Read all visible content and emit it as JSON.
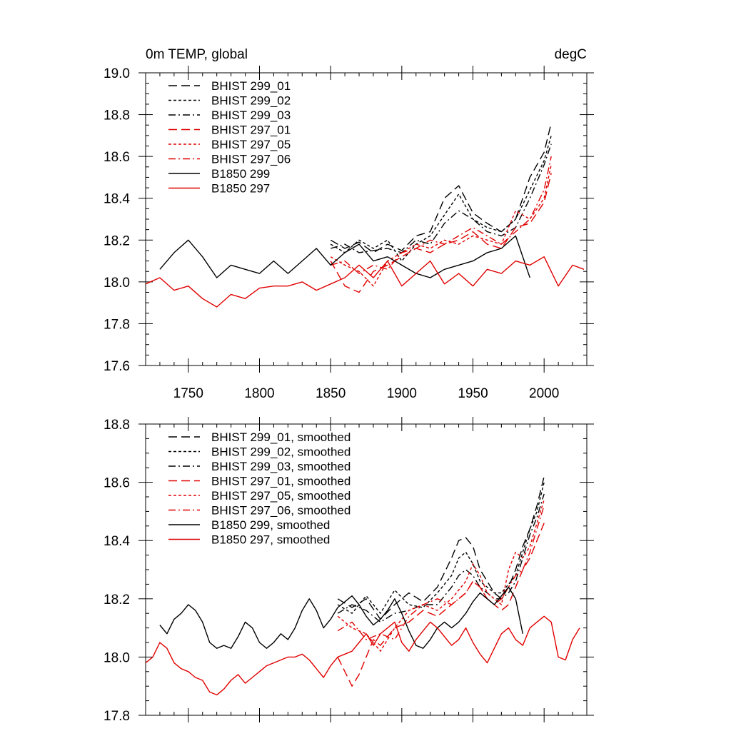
{
  "header": {
    "title": "0m TEMP, global",
    "units": "degC"
  },
  "chart_data": [
    {
      "type": "line",
      "panel": "top",
      "xlim": [
        1720,
        2030
      ],
      "ylim": [
        17.6,
        19.0
      ],
      "xticks": [
        1750,
        1800,
        1850,
        1900,
        1950,
        2000
      ],
      "xtick_labels": [
        "1750",
        "1800",
        "1850",
        "1900",
        "1950",
        "2000"
      ],
      "yticks": [
        17.6,
        17.8,
        18.0,
        18.2,
        18.4,
        18.6,
        18.8,
        19.0
      ],
      "ytick_labels": [
        "17.6",
        "17.8",
        "18.0",
        "18.2",
        "18.4",
        "18.6",
        "18.8",
        "19.0"
      ],
      "legend_position": "top-left",
      "series": [
        {
          "name": "BHIST 299_01",
          "color": "#000000",
          "dash": "longdash",
          "x": [
            1850,
            1860,
            1870,
            1880,
            1890,
            1900,
            1910,
            1920,
            1930,
            1940,
            1950,
            1960,
            1970,
            1980,
            1990,
            2000,
            2005
          ],
          "y": [
            18.2,
            18.16,
            18.19,
            18.14,
            18.18,
            18.15,
            18.22,
            18.24,
            18.4,
            18.46,
            18.33,
            18.28,
            18.24,
            18.3,
            18.5,
            18.62,
            18.76
          ]
        },
        {
          "name": "BHIST 299_02",
          "color": "#000000",
          "dash": "shortdash",
          "x": [
            1850,
            1860,
            1870,
            1880,
            1890,
            1900,
            1910,
            1920,
            1930,
            1940,
            1950,
            1960,
            1970,
            1980,
            1990,
            2000,
            2005
          ],
          "y": [
            18.18,
            18.14,
            18.2,
            18.16,
            18.2,
            18.1,
            18.18,
            18.22,
            18.32,
            18.42,
            18.3,
            18.26,
            18.24,
            18.3,
            18.44,
            18.58,
            18.7
          ]
        },
        {
          "name": "BHIST 299_03",
          "color": "#000000",
          "dash": "dashdot",
          "x": [
            1850,
            1860,
            1870,
            1880,
            1890,
            1900,
            1910,
            1920,
            1930,
            1940,
            1950,
            1960,
            1970,
            1980,
            1990,
            2000,
            2005
          ],
          "y": [
            18.16,
            18.18,
            18.14,
            18.15,
            18.16,
            18.14,
            18.2,
            18.18,
            18.28,
            18.34,
            18.3,
            18.24,
            18.22,
            18.26,
            18.4,
            18.56,
            18.66
          ]
        },
        {
          "name": "BHIST 297_01",
          "color": "#e00000",
          "dash": "longdash",
          "x": [
            1850,
            1860,
            1870,
            1880,
            1890,
            1900,
            1910,
            1920,
            1930,
            1940,
            1950,
            1960,
            1970,
            1980,
            1990,
            2000,
            2005
          ],
          "y": [
            18.1,
            17.98,
            17.95,
            18.05,
            18.08,
            18.12,
            18.16,
            18.14,
            18.18,
            18.2,
            18.24,
            18.18,
            18.16,
            18.26,
            18.28,
            18.38,
            18.52
          ]
        },
        {
          "name": "BHIST 297_05",
          "color": "#e00000",
          "dash": "shortdash",
          "x": [
            1850,
            1860,
            1870,
            1880,
            1890,
            1900,
            1910,
            1920,
            1930,
            1940,
            1950,
            1960,
            1970,
            1980,
            1990,
            2000,
            2005
          ],
          "y": [
            18.12,
            18.08,
            18.05,
            17.98,
            18.1,
            18.14,
            18.18,
            18.16,
            18.2,
            18.18,
            18.22,
            18.2,
            18.18,
            18.34,
            18.3,
            18.4,
            18.56
          ]
        },
        {
          "name": "BHIST 297_06",
          "color": "#e00000",
          "dash": "dashdot",
          "x": [
            1850,
            1860,
            1870,
            1880,
            1890,
            1900,
            1910,
            1920,
            1930,
            1940,
            1950,
            1960,
            1970,
            1980,
            1990,
            2000,
            2005
          ],
          "y": [
            18.08,
            18.1,
            18.04,
            18.08,
            18.06,
            18.14,
            18.16,
            18.2,
            18.18,
            18.22,
            18.26,
            18.22,
            18.18,
            18.24,
            18.3,
            18.44,
            18.6
          ]
        },
        {
          "name": "B1850 299",
          "color": "#000000",
          "dash": "solid",
          "x": [
            1730,
            1740,
            1750,
            1760,
            1770,
            1780,
            1790,
            1800,
            1810,
            1820,
            1830,
            1840,
            1850,
            1860,
            1870,
            1880,
            1890,
            1900,
            1910,
            1920,
            1930,
            1940,
            1950,
            1960,
            1970,
            1980,
            1990
          ],
          "y": [
            18.06,
            18.14,
            18.2,
            18.12,
            18.02,
            18.08,
            18.06,
            18.04,
            18.1,
            18.04,
            18.1,
            18.16,
            18.08,
            18.14,
            18.18,
            18.1,
            18.12,
            18.08,
            18.04,
            18.02,
            18.06,
            18.08,
            18.1,
            18.14,
            18.16,
            18.22,
            18.02
          ]
        },
        {
          "name": "B1850 297",
          "color": "#e00000",
          "dash": "solid",
          "x": [
            1720,
            1730,
            1740,
            1750,
            1760,
            1770,
            1780,
            1790,
            1800,
            1810,
            1820,
            1830,
            1840,
            1850,
            1860,
            1870,
            1880,
            1890,
            1900,
            1910,
            1920,
            1930,
            1940,
            1950,
            1960,
            1970,
            1980,
            1990,
            2000,
            2010,
            2020,
            2028
          ],
          "y": [
            17.99,
            18.02,
            17.96,
            17.98,
            17.92,
            17.88,
            17.94,
            17.92,
            17.97,
            17.98,
            17.98,
            18.0,
            17.96,
            17.99,
            18.02,
            18.08,
            18.02,
            18.1,
            17.98,
            18.04,
            18.1,
            17.99,
            18.04,
            17.98,
            18.06,
            18.04,
            18.1,
            18.08,
            18.12,
            17.98,
            18.08,
            18.06
          ]
        }
      ]
    },
    {
      "type": "line",
      "panel": "bottom",
      "xlim": [
        1720,
        2030
      ],
      "ylim": [
        17.8,
        18.8
      ],
      "yticks": [
        17.8,
        18.0,
        18.2,
        18.4,
        18.6,
        18.8
      ],
      "ytick_labels": [
        "17.8",
        "18.0",
        "18.2",
        "18.4",
        "18.6",
        "18.8"
      ],
      "legend_position": "top-left",
      "series": [
        {
          "name": "BHIST 299_01, smoothed",
          "color": "#000000",
          "dash": "longdash",
          "x": [
            1855,
            1865,
            1875,
            1885,
            1895,
            1905,
            1915,
            1925,
            1935,
            1940,
            1945,
            1950,
            1955,
            1960,
            1965,
            1970,
            1975,
            1980,
            1985,
            1990,
            1995,
            2000
          ],
          "y": [
            18.2,
            18.17,
            18.2,
            18.13,
            18.18,
            18.22,
            18.19,
            18.24,
            18.34,
            18.4,
            18.41,
            18.38,
            18.3,
            18.26,
            18.22,
            18.2,
            18.24,
            18.3,
            18.38,
            18.44,
            18.52,
            18.62
          ]
        },
        {
          "name": "BHIST 299_02, smoothed",
          "color": "#000000",
          "dash": "shortdash",
          "x": [
            1855,
            1865,
            1875,
            1885,
            1895,
            1905,
            1915,
            1925,
            1935,
            1940,
            1945,
            1950,
            1955,
            1960,
            1965,
            1970,
            1975,
            1980,
            1985,
            1990,
            1995,
            2000
          ],
          "y": [
            18.18,
            18.15,
            18.21,
            18.15,
            18.23,
            18.18,
            18.17,
            18.22,
            18.28,
            18.34,
            18.36,
            18.32,
            18.26,
            18.24,
            18.22,
            18.22,
            18.25,
            18.28,
            18.36,
            18.44,
            18.5,
            18.6
          ]
        },
        {
          "name": "BHIST 299_03, smoothed",
          "color": "#000000",
          "dash": "dashdot",
          "x": [
            1855,
            1865,
            1875,
            1885,
            1895,
            1905,
            1915,
            1925,
            1935,
            1940,
            1945,
            1950,
            1955,
            1960,
            1965,
            1970,
            1975,
            1980,
            1985,
            1990,
            1995,
            2000
          ],
          "y": [
            18.15,
            18.18,
            18.16,
            18.12,
            18.15,
            18.16,
            18.18,
            18.18,
            18.24,
            18.28,
            18.3,
            18.28,
            18.24,
            18.22,
            18.2,
            18.2,
            18.22,
            18.26,
            18.34,
            18.42,
            18.48,
            18.56
          ]
        },
        {
          "name": "BHIST 297_01, smoothed",
          "color": "#e00000",
          "dash": "longdash",
          "x": [
            1855,
            1860,
            1865,
            1870,
            1875,
            1880,
            1885,
            1895,
            1905,
            1915,
            1925,
            1935,
            1945,
            1950,
            1955,
            1960,
            1965,
            1970,
            1975,
            1980,
            1985,
            1990,
            1995,
            2000
          ],
          "y": [
            18.0,
            17.95,
            17.9,
            17.94,
            18.0,
            18.06,
            18.04,
            18.1,
            18.12,
            18.16,
            18.14,
            18.18,
            18.22,
            18.26,
            18.24,
            18.2,
            18.18,
            18.16,
            18.18,
            18.24,
            18.3,
            18.34,
            18.4,
            18.46
          ]
        },
        {
          "name": "BHIST 297_05, smoothed",
          "color": "#e00000",
          "dash": "shortdash",
          "x": [
            1855,
            1865,
            1875,
            1885,
            1895,
            1905,
            1915,
            1925,
            1935,
            1945,
            1950,
            1955,
            1960,
            1965,
            1970,
            1975,
            1980,
            1985,
            1990,
            1995,
            2000
          ],
          "y": [
            18.14,
            18.1,
            18.08,
            18.02,
            18.1,
            18.16,
            18.18,
            18.16,
            18.2,
            18.26,
            18.32,
            18.28,
            18.22,
            18.2,
            18.18,
            18.3,
            18.36,
            18.34,
            18.38,
            18.46,
            18.54
          ]
        },
        {
          "name": "BHIST 297_06, smoothed",
          "color": "#e00000",
          "dash": "dashdot",
          "x": [
            1855,
            1865,
            1875,
            1885,
            1895,
            1905,
            1915,
            1925,
            1935,
            1945,
            1950,
            1955,
            1960,
            1965,
            1970,
            1975,
            1980,
            1985,
            1990,
            1995,
            2000
          ],
          "y": [
            18.09,
            18.12,
            18.06,
            18.08,
            18.06,
            18.14,
            18.18,
            18.2,
            18.18,
            18.22,
            18.26,
            18.24,
            18.2,
            18.18,
            18.2,
            18.24,
            18.28,
            18.3,
            18.36,
            18.44,
            18.52
          ]
        },
        {
          "name": "B1850 299, smoothed",
          "color": "#000000",
          "dash": "solid",
          "x": [
            1730,
            1735,
            1740,
            1745,
            1750,
            1755,
            1760,
            1765,
            1770,
            1775,
            1780,
            1785,
            1790,
            1795,
            1800,
            1805,
            1810,
            1815,
            1820,
            1825,
            1830,
            1835,
            1840,
            1845,
            1850,
            1855,
            1860,
            1865,
            1870,
            1875,
            1880,
            1885,
            1890,
            1895,
            1900,
            1905,
            1910,
            1915,
            1920,
            1925,
            1930,
            1935,
            1940,
            1945,
            1950,
            1955,
            1960,
            1965,
            1970,
            1975,
            1980,
            1985
          ],
          "y": [
            18.11,
            18.08,
            18.13,
            18.15,
            18.18,
            18.16,
            18.12,
            18.05,
            18.03,
            18.04,
            18.03,
            18.07,
            18.12,
            18.1,
            18.05,
            18.03,
            18.05,
            18.08,
            18.06,
            18.1,
            18.16,
            18.2,
            18.16,
            18.1,
            18.13,
            18.17,
            18.19,
            18.21,
            18.18,
            18.14,
            18.11,
            18.13,
            18.16,
            18.2,
            18.15,
            18.09,
            18.04,
            18.03,
            18.06,
            18.1,
            18.12,
            18.1,
            18.12,
            18.15,
            18.19,
            18.22,
            18.2,
            18.18,
            18.21,
            18.24,
            18.2,
            18.08
          ]
        },
        {
          "name": "B1850 297, smoothed",
          "color": "#e00000",
          "dash": "solid",
          "x": [
            1720,
            1725,
            1730,
            1735,
            1740,
            1745,
            1750,
            1755,
            1760,
            1765,
            1770,
            1775,
            1780,
            1785,
            1790,
            1795,
            1800,
            1805,
            1810,
            1815,
            1820,
            1825,
            1830,
            1835,
            1840,
            1845,
            1850,
            1855,
            1860,
            1865,
            1870,
            1875,
            1880,
            1885,
            1890,
            1895,
            1900,
            1905,
            1910,
            1915,
            1920,
            1925,
            1930,
            1935,
            1940,
            1945,
            1950,
            1955,
            1960,
            1965,
            1970,
            1975,
            1980,
            1985,
            1990,
            1995,
            2000,
            2005,
            2010,
            2015,
            2020,
            2025
          ],
          "y": [
            17.98,
            18.0,
            18.05,
            18.03,
            17.98,
            17.96,
            17.95,
            17.93,
            17.92,
            17.88,
            17.87,
            17.89,
            17.92,
            17.94,
            17.91,
            17.93,
            17.95,
            17.97,
            17.98,
            17.99,
            18.0,
            18.0,
            18.01,
            17.99,
            17.96,
            17.93,
            17.97,
            18.0,
            18.01,
            18.02,
            18.05,
            18.08,
            18.04,
            18.08,
            18.1,
            18.12,
            18.05,
            18.02,
            18.06,
            18.09,
            18.12,
            18.1,
            18.07,
            18.04,
            18.06,
            18.1,
            18.05,
            18.01,
            17.98,
            18.03,
            18.08,
            18.1,
            18.06,
            18.04,
            18.1,
            18.12,
            18.14,
            18.12,
            18.0,
            17.99,
            18.06,
            18.1
          ]
        }
      ]
    }
  ]
}
